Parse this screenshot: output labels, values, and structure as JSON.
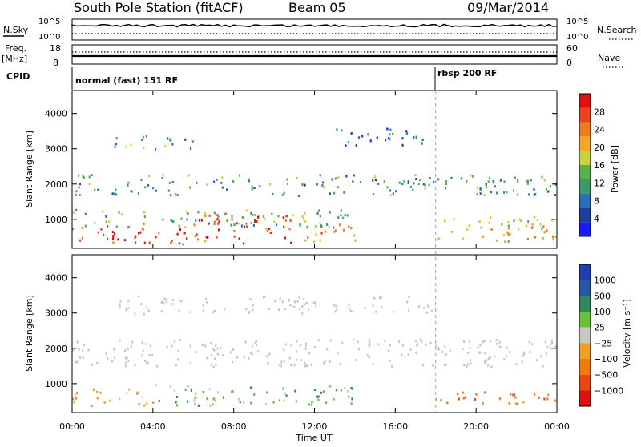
{
  "header": {
    "station": "South Pole Station (fitACF)",
    "beam": "Beam 05",
    "date": "09/Mar/2014"
  },
  "strips": {
    "nsky": {
      "label": "N.Sky",
      "ticks": [
        "10^5",
        "10^0"
      ],
      "right_label": "N.Search",
      "right_ticks": [
        "10^5",
        "10^0"
      ]
    },
    "freq": {
      "label_line1": "Freq.",
      "label_line2": "[MHz]",
      "ticks": [
        "18",
        "8"
      ],
      "right_label": "Nave",
      "right_ticks": [
        "60",
        "0"
      ]
    },
    "cpid": {
      "label": "CPID",
      "modes": [
        "normal (fast) 151 RF",
        "rbsp 200 RF"
      ],
      "mode_change_time": "18:00"
    }
  },
  "colors": {
    "power": [
      "#1a1aff",
      "#1e3ea0",
      "#2a6db8",
      "#3a9a6a",
      "#5bb04a",
      "#c8d23c",
      "#f5a623",
      "#f07a1e",
      "#e8451a",
      "#e01010"
    ],
    "velocity": [
      "#1f3fb0",
      "#2a56a8",
      "#2e8a5a",
      "#66c23a",
      "#c8c8c0",
      "#f0a020",
      "#f07a10",
      "#e84810",
      "#e01010"
    ],
    "ground_scatter": "#c8c8c0"
  },
  "chart_data": [
    {
      "type": "heatmap",
      "panel": "power",
      "ylabel": "Slant Range [km]",
      "y_ticks": [
        1000,
        2000,
        3000,
        4000
      ],
      "ylim": [
        180,
        4650
      ],
      "x_ticks": [
        "00:00",
        "04:00",
        "08:00",
        "12:00",
        "16:00",
        "20:00",
        "00:00"
      ],
      "xlim": [
        0,
        24
      ],
      "colorbar": {
        "label": "Power [dB]",
        "ticks": [
          4,
          8,
          12,
          16,
          20,
          24,
          28
        ],
        "range": [
          0,
          32
        ]
      },
      "bands": [
        {
          "t": [
            0,
            6
          ],
          "r": [
            300,
            800
          ],
          "level": 28
        },
        {
          "t": [
            6,
            11
          ],
          "r": [
            350,
            1200
          ],
          "level": 28
        },
        {
          "t": [
            11,
            14
          ],
          "r": [
            400,
            900
          ],
          "level": 22
        },
        {
          "t": [
            0,
            14
          ],
          "r": [
            800,
            1300
          ],
          "level": 14
        },
        {
          "t": [
            0,
            24
          ],
          "r": [
            1700,
            2300
          ],
          "level": 12
        },
        {
          "t": [
            2,
            6
          ],
          "r": [
            3000,
            3400
          ],
          "level": 12
        },
        {
          "t": [
            13,
            18
          ],
          "r": [
            3100,
            3600
          ],
          "level": 6
        },
        {
          "t": [
            18,
            24
          ],
          "r": [
            400,
            1100
          ],
          "level": 20
        }
      ]
    },
    {
      "type": "heatmap",
      "panel": "velocity",
      "ylabel": "Slant Range [km]",
      "y_ticks": [
        1000,
        2000,
        3000,
        4000
      ],
      "ylim": [
        180,
        4650
      ],
      "x_ticks": [
        "00:00",
        "04:00",
        "08:00",
        "12:00",
        "16:00",
        "20:00",
        "00:00"
      ],
      "xlabel": "Time UT",
      "xlim": [
        0,
        24
      ],
      "colorbar": {
        "label": "Velocity [m s⁻¹]",
        "ticks": [
          "1000",
          "500",
          "100",
          "25",
          "−25",
          "−100",
          "−500",
          "−1000"
        ]
      },
      "bands": [
        {
          "t": [
            0,
            4
          ],
          "r": [
            400,
            900
          ],
          "level": "-100"
        },
        {
          "t": [
            4,
            14
          ],
          "r": [
            400,
            1000
          ],
          "level": "100"
        },
        {
          "t": [
            18,
            24
          ],
          "r": [
            400,
            800
          ],
          "level": "-500"
        },
        {
          "t": [
            0,
            24
          ],
          "r": [
            1500,
            2300
          ],
          "level": "ground"
        },
        {
          "t": [
            2,
            18
          ],
          "r": [
            3000,
            3500
          ],
          "level": "ground"
        }
      ]
    }
  ]
}
